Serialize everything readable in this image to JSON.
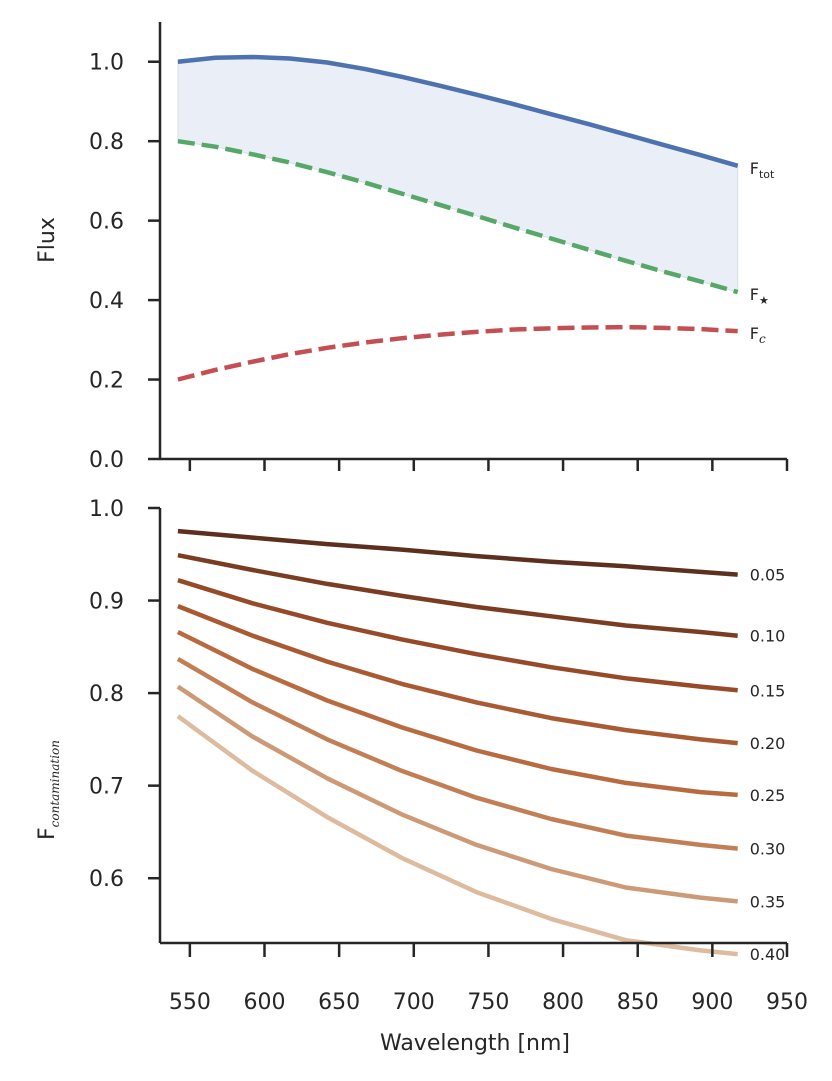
{
  "chart_data": [
    {
      "type": "line",
      "ylabel": "Flux",
      "xlim": [
        530,
        950
      ],
      "ylim": [
        0.0,
        1.1
      ],
      "yticks": [
        0.0,
        0.2,
        0.4,
        0.6,
        0.8,
        1.0
      ],
      "ytick_labels": [
        "0.0",
        "0.2",
        "0.4",
        "0.6",
        "0.8",
        "1.0"
      ],
      "xticks": [
        550,
        600,
        650,
        700,
        750,
        800,
        850,
        900,
        950
      ],
      "fill_between": {
        "upper": "F_tot",
        "lower": "F_star",
        "color": "#eaeef7"
      },
      "series": [
        {
          "name": "F_tot",
          "label_main": "F",
          "label_sub": "tot",
          "style": "solid",
          "color": "#4c72b0",
          "x": [
            542,
            567,
            592,
            617,
            642,
            667,
            692,
            717,
            742,
            767,
            792,
            817,
            842,
            867,
            892,
            917
          ],
          "y": [
            1.0,
            1.01,
            1.012,
            1.008,
            0.998,
            0.982,
            0.962,
            0.94,
            0.917,
            0.893,
            0.868,
            0.843,
            0.817,
            0.791,
            0.765,
            0.738
          ]
        },
        {
          "name": "F_star",
          "label_main": "F",
          "label_sub": "★",
          "style": "dashed",
          "color": "#55a868",
          "x": [
            542,
            567,
            592,
            617,
            642,
            667,
            692,
            717,
            742,
            767,
            792,
            817,
            842,
            867,
            892,
            917
          ],
          "y": [
            0.8,
            0.786,
            0.767,
            0.746,
            0.722,
            0.696,
            0.668,
            0.64,
            0.612,
            0.583,
            0.555,
            0.527,
            0.499,
            0.472,
            0.447,
            0.42
          ]
        },
        {
          "name": "F_c",
          "label_main": "F",
          "label_sub": "c",
          "style": "dashed",
          "color": "#c44e52",
          "x": [
            542,
            567,
            592,
            617,
            642,
            667,
            692,
            717,
            742,
            767,
            792,
            817,
            842,
            867,
            892,
            917
          ],
          "y": [
            0.2,
            0.224,
            0.245,
            0.264,
            0.28,
            0.293,
            0.304,
            0.313,
            0.32,
            0.326,
            0.329,
            0.331,
            0.332,
            0.33,
            0.327,
            0.322
          ]
        }
      ]
    },
    {
      "type": "line",
      "ylabel_main": "F",
      "ylabel_sub": "contamination",
      "xlabel": "Wavelength [nm]",
      "xlim": [
        530,
        950
      ],
      "ylim": [
        0.53,
        1.0
      ],
      "yticks": [
        0.6,
        0.7,
        0.8,
        0.9,
        1.0
      ],
      "ytick_labels": [
        "0.6",
        "0.7",
        "0.8",
        "0.9",
        "1.0"
      ],
      "xticks": [
        550,
        600,
        650,
        700,
        750,
        800,
        850,
        900,
        950
      ],
      "xtick_labels": [
        "550",
        "600",
        "650",
        "700",
        "750",
        "800",
        "850",
        "900",
        "950"
      ],
      "x": [
        542,
        592,
        642,
        692,
        742,
        792,
        842,
        892,
        917
      ],
      "series": [
        {
          "name": "0.05",
          "label": "0.05",
          "color": "#5c2f1f",
          "y": [
            0.975,
            0.968,
            0.961,
            0.955,
            0.948,
            0.942,
            0.937,
            0.931,
            0.928
          ]
        },
        {
          "name": "0.10",
          "label": "0.10",
          "color": "#7a3d22",
          "y": [
            0.949,
            0.933,
            0.918,
            0.905,
            0.893,
            0.883,
            0.873,
            0.866,
            0.862
          ]
        },
        {
          "name": "0.15",
          "label": "0.15",
          "color": "#964a28",
          "y": [
            0.922,
            0.897,
            0.876,
            0.858,
            0.842,
            0.828,
            0.816,
            0.807,
            0.803
          ]
        },
        {
          "name": "0.20",
          "label": "0.20",
          "color": "#aa5a32",
          "y": [
            0.894,
            0.862,
            0.834,
            0.81,
            0.79,
            0.773,
            0.76,
            0.75,
            0.746
          ]
        },
        {
          "name": "0.25",
          "label": "0.25",
          "color": "#b86b40",
          "y": [
            0.866,
            0.826,
            0.792,
            0.763,
            0.738,
            0.718,
            0.703,
            0.693,
            0.69
          ]
        },
        {
          "name": "0.30",
          "label": "0.30",
          "color": "#c27f56",
          "y": [
            0.837,
            0.79,
            0.75,
            0.716,
            0.687,
            0.664,
            0.646,
            0.636,
            0.632
          ]
        },
        {
          "name": "0.35",
          "label": "0.35",
          "color": "#cc9a76",
          "y": [
            0.807,
            0.753,
            0.708,
            0.669,
            0.636,
            0.61,
            0.59,
            0.579,
            0.575
          ]
        },
        {
          "name": "0.40",
          "label": "0.40",
          "color": "#dcbb9e",
          "y": [
            0.775,
            0.716,
            0.666,
            0.622,
            0.585,
            0.556,
            0.533,
            0.522,
            0.518
          ]
        }
      ]
    }
  ]
}
